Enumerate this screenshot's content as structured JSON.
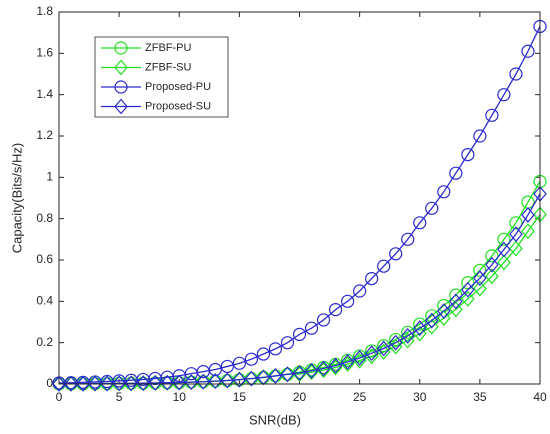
{
  "chart_data": {
    "type": "line",
    "xlabel": "SNR(dB)",
    "ylabel": "Capacity(Bits/s/Hz)",
    "x": [
      0,
      1,
      2,
      3,
      4,
      5,
      6,
      7,
      8,
      9,
      10,
      11,
      12,
      13,
      14,
      15,
      16,
      17,
      18,
      19,
      20,
      21,
      22,
      23,
      24,
      25,
      26,
      27,
      28,
      29,
      30,
      31,
      32,
      33,
      34,
      35,
      36,
      37,
      38,
      39,
      40
    ],
    "xlim": [
      0,
      40
    ],
    "xticks": [
      0,
      5,
      10,
      15,
      20,
      25,
      30,
      35,
      40
    ],
    "ylim": [
      0,
      1.8
    ],
    "yticks": [
      0,
      0.2,
      0.4,
      0.6,
      0.8,
      1,
      1.2,
      1.4,
      1.6,
      1.8
    ],
    "legend": "upper left",
    "grid": false,
    "series": [
      {
        "name": "ZFBF-PU",
        "color": "#1fe01f",
        "marker": "circle",
        "values": [
          0.001,
          0.001,
          0.001,
          0.002,
          0.002,
          0.003,
          0.003,
          0.004,
          0.005,
          0.006,
          0.007,
          0.009,
          0.011,
          0.014,
          0.017,
          0.021,
          0.026,
          0.032,
          0.039,
          0.047,
          0.057,
          0.068,
          0.08,
          0.095,
          0.115,
          0.135,
          0.16,
          0.185,
          0.215,
          0.25,
          0.29,
          0.33,
          0.38,
          0.43,
          0.49,
          0.55,
          0.62,
          0.7,
          0.78,
          0.88,
          0.98
        ]
      },
      {
        "name": "ZFBF-SU",
        "color": "#1fe01f",
        "marker": "diamond",
        "values": [
          0.001,
          0.001,
          0.001,
          0.002,
          0.002,
          0.003,
          0.003,
          0.004,
          0.005,
          0.006,
          0.007,
          0.009,
          0.011,
          0.014,
          0.017,
          0.021,
          0.026,
          0.032,
          0.039,
          0.047,
          0.048,
          0.057,
          0.067,
          0.08,
          0.097,
          0.113,
          0.134,
          0.155,
          0.181,
          0.21,
          0.244,
          0.277,
          0.319,
          0.361,
          0.412,
          0.462,
          0.521,
          0.588,
          0.655,
          0.739,
          0.82
        ]
      },
      {
        "name": "Proposed-PU",
        "color": "#2a2ad0",
        "marker": "circle",
        "values": [
          0.005,
          0.006,
          0.008,
          0.01,
          0.012,
          0.015,
          0.018,
          0.022,
          0.027,
          0.033,
          0.04,
          0.05,
          0.06,
          0.07,
          0.085,
          0.1,
          0.12,
          0.145,
          0.17,
          0.2,
          0.24,
          0.27,
          0.31,
          0.36,
          0.4,
          0.45,
          0.51,
          0.57,
          0.63,
          0.7,
          0.78,
          0.85,
          0.93,
          1.02,
          1.11,
          1.2,
          1.3,
          1.4,
          1.5,
          1.61,
          1.73
        ]
      },
      {
        "name": "Proposed-SU",
        "color": "#2a2ad0",
        "marker": "diamond",
        "values": [
          0.001,
          0.001,
          0.001,
          0.002,
          0.002,
          0.003,
          0.003,
          0.004,
          0.005,
          0.006,
          0.007,
          0.009,
          0.011,
          0.014,
          0.017,
          0.021,
          0.026,
          0.032,
          0.039,
          0.047,
          0.054,
          0.064,
          0.075,
          0.089,
          0.107,
          0.126,
          0.149,
          0.172,
          0.2,
          0.233,
          0.27,
          0.307,
          0.353,
          0.4,
          0.456,
          0.512,
          0.577,
          0.651,
          0.725,
          0.818,
          0.92
        ]
      }
    ]
  }
}
